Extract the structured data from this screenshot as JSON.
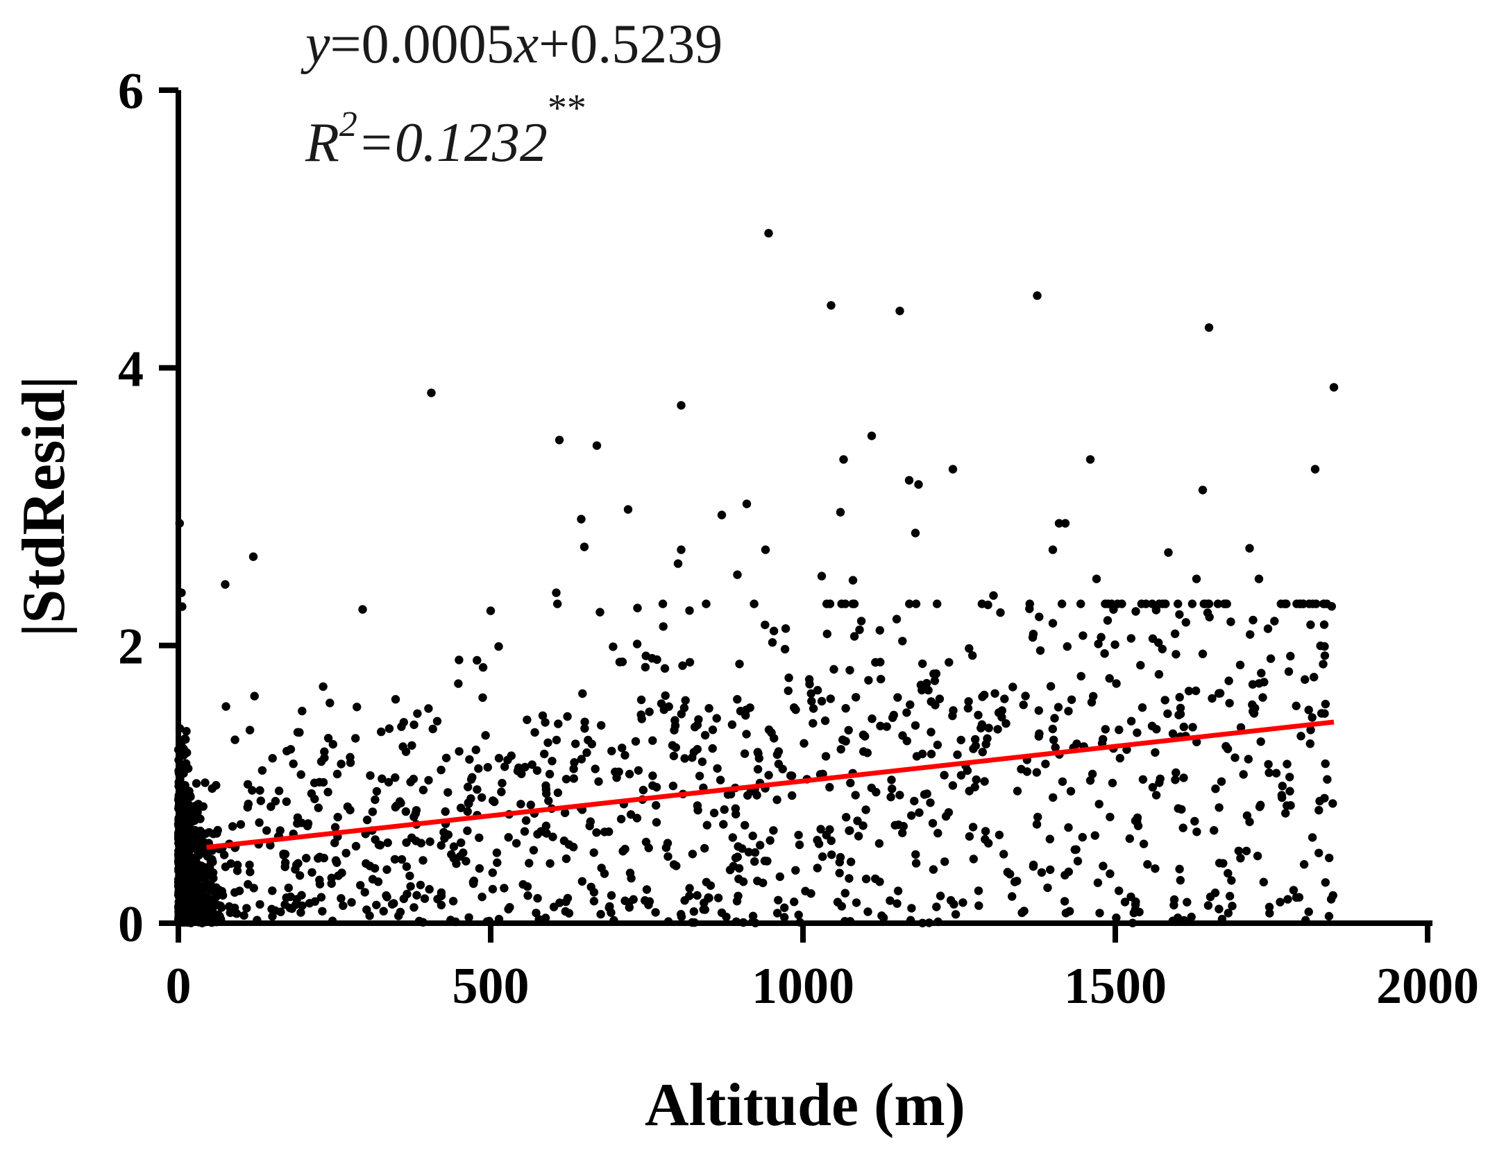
{
  "chart_data": {
    "type": "scatter",
    "title": "",
    "xlabel": "Altitude (m)",
    "ylabel": "|StdResid|",
    "xlim": [
      0,
      2000
    ],
    "ylim": [
      0,
      6
    ],
    "xticks": [
      "0",
      "500",
      "1000",
      "1500",
      "2000"
    ],
    "yticks": [
      "0",
      "2",
      "4",
      "6"
    ],
    "grid": false,
    "legend": "none",
    "point_color": "#000000",
    "fit_color": "#ff0000",
    "annotations": {
      "equation": {
        "y": "y",
        "eq1": "=0.0005",
        "x": "x",
        "eq2": "+0.5239"
      },
      "r2": {
        "R": "R",
        "sup": "2",
        "val": "=0.1232",
        "stars": "**"
      }
    },
    "fit_line": {
      "slope": 0.0005,
      "intercept": 0.5239,
      "x": [
        45,
        1850
      ]
    },
    "notable_points": [
      {
        "x": 945,
        "y": 4.97
      },
      {
        "x": 1045,
        "y": 4.45
      },
      {
        "x": 1155,
        "y": 4.41
      },
      {
        "x": 1375,
        "y": 4.52
      },
      {
        "x": 1650,
        "y": 4.29
      },
      {
        "x": 1850,
        "y": 3.86
      },
      {
        "x": 405,
        "y": 3.82
      },
      {
        "x": 805,
        "y": 3.73
      },
      {
        "x": 610,
        "y": 3.48
      },
      {
        "x": 670,
        "y": 3.44
      },
      {
        "x": 1110,
        "y": 3.51
      },
      {
        "x": 1065,
        "y": 3.34
      },
      {
        "x": 1240,
        "y": 3.27
      },
      {
        "x": 1460,
        "y": 3.34
      },
      {
        "x": 1820,
        "y": 3.27
      },
      {
        "x": 1640,
        "y": 3.12
      },
      {
        "x": 1170,
        "y": 3.19
      },
      {
        "x": 1185,
        "y": 3.16
      },
      {
        "x": 910,
        "y": 3.02
      },
      {
        "x": 720,
        "y": 2.98
      },
      {
        "x": 1060,
        "y": 2.96
      },
      {
        "x": 645,
        "y": 2.91
      },
      {
        "x": 870,
        "y": 2.94
      },
      {
        "x": 1410,
        "y": 2.88
      },
      {
        "x": 1420,
        "y": 2.88
      },
      {
        "x": 1180,
        "y": 2.81
      },
      {
        "x": 2,
        "y": 2.88
      },
      {
        "x": 120,
        "y": 2.64
      },
      {
        "x": 650,
        "y": 2.71
      },
      {
        "x": 805,
        "y": 2.69
      },
      {
        "x": 940,
        "y": 2.69
      },
      {
        "x": 1400,
        "y": 2.69
      },
      {
        "x": 1585,
        "y": 2.67
      },
      {
        "x": 1715,
        "y": 2.7
      },
      {
        "x": 1730,
        "y": 2.48
      },
      {
        "x": 1630,
        "y": 2.48
      },
      {
        "x": 1470,
        "y": 2.48
      },
      {
        "x": 1080,
        "y": 2.47
      },
      {
        "x": 1030,
        "y": 2.5
      },
      {
        "x": 800,
        "y": 2.59
      },
      {
        "x": 895,
        "y": 2.51
      },
      {
        "x": 75,
        "y": 2.44
      },
      {
        "x": 5,
        "y": 2.38
      },
      {
        "x": 6,
        "y": 2.28
      },
      {
        "x": 295,
        "y": 2.26
      },
      {
        "x": 500,
        "y": 2.25
      },
      {
        "x": 605,
        "y": 2.38
      },
      {
        "x": 675,
        "y": 2.24
      },
      {
        "x": 735,
        "y": 2.27
      },
      {
        "x": 1305,
        "y": 2.36
      },
      {
        "x": 1150,
        "y": 2.19
      },
      {
        "x": 1400,
        "y": 2.16
      },
      {
        "x": 1560,
        "y": 2.05
      },
      {
        "x": 1835,
        "y": 1.51
      },
      {
        "x": 1700,
        "y": 1.86
      },
      {
        "x": 1720,
        "y": 1.72
      },
      {
        "x": 1640,
        "y": 1.94
      },
      {
        "x": 1715,
        "y": 0.73
      },
      {
        "x": 1710,
        "y": 0.52
      },
      {
        "x": 1670,
        "y": 1.02
      },
      {
        "x": 1610,
        "y": 0.02
      }
    ]
  }
}
